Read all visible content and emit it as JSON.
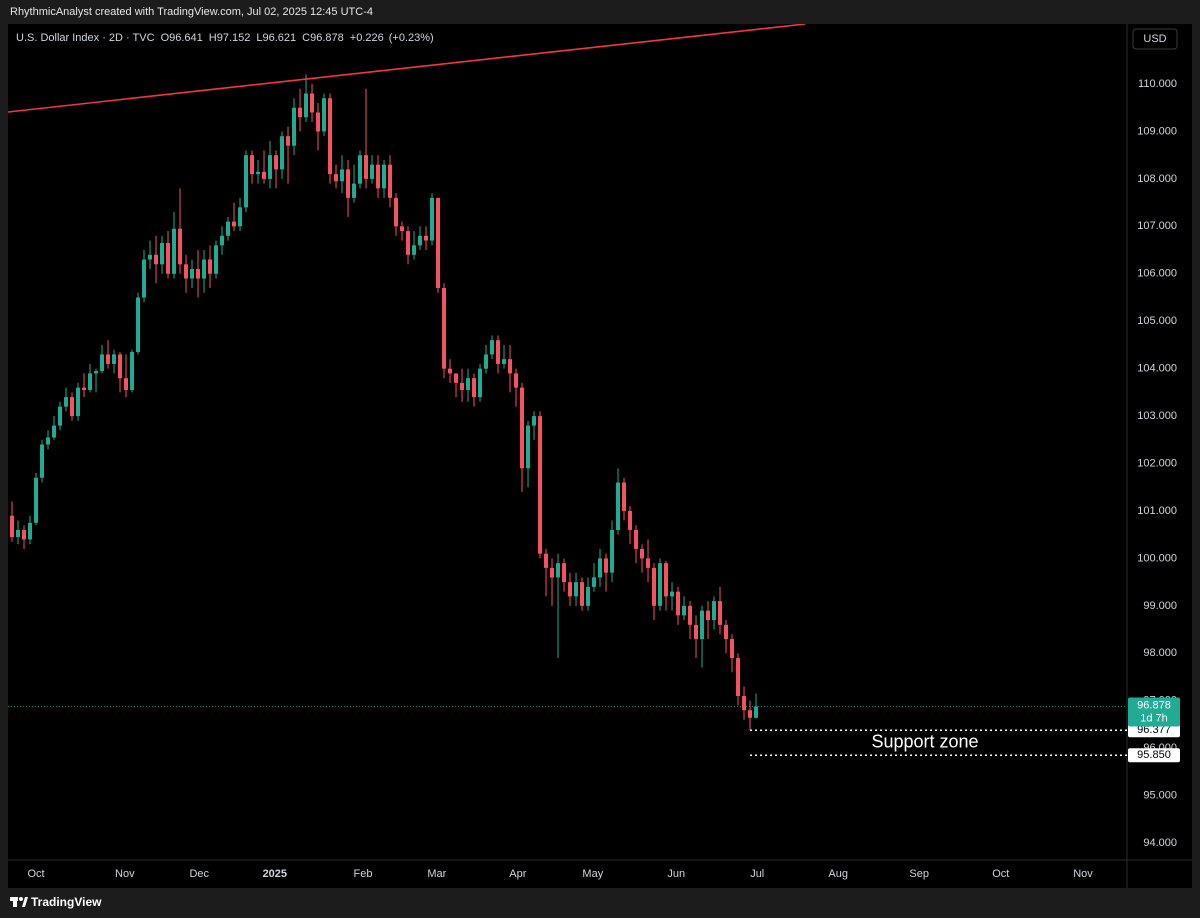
{
  "header": "RhythmicAnalyst created with TradingView.com, Jul 02, 2025 12:45 UTC-4",
  "brand": "TradingView",
  "chart_data": {
    "type": "candlestick",
    "title": "U.S. Dollar Index · 2D · TVC",
    "ohlc_labels": [
      "O",
      "H",
      "L",
      "C"
    ],
    "change": "+0.226",
    "change_pct": "(+0.23%)",
    "currency": "USD",
    "countdown": "1d 7h",
    "up_color": "#22ab94",
    "down_color": "#f7525f",
    "open": [
      100.9,
      100.45,
      100.6,
      100.4,
      100.75,
      101.7,
      102.4,
      102.55,
      102.8,
      103.2,
      103.4,
      103.0,
      103.6,
      103.55,
      103.9,
      103.95,
      104.3,
      104.1,
      104.3,
      103.8,
      103.55,
      104.35,
      105.5,
      106.3,
      106.4,
      106.2,
      106.65,
      106.0,
      106.95,
      106.2,
      105.9,
      106.1,
      105.9,
      106.3,
      106.0,
      106.6,
      106.8,
      107.1,
      107.0,
      107.4,
      108.5,
      108.1,
      108.15,
      108.0,
      108.5,
      108.2,
      108.9,
      108.7,
      109.5,
      109.3,
      109.8,
      109.4,
      109.0,
      109.7,
      108.1,
      107.95,
      108.2,
      107.6,
      107.9,
      108.5,
      108.0,
      108.3,
      107.8,
      108.3,
      107.6,
      107.0,
      106.9,
      106.4,
      106.6,
      106.8,
      106.7,
      107.6,
      105.7,
      104.0,
      103.9,
      103.7,
      103.55,
      103.8,
      103.4,
      104.0,
      104.3,
      104.6,
      104.1,
      104.2,
      103.9,
      103.6,
      101.9,
      102.8,
      103.0,
      100.1,
      99.8,
      99.6,
      99.9,
      99.5,
      99.2,
      99.5,
      99.0,
      99.4,
      99.6,
      100.0,
      99.7,
      100.6,
      101.6,
      101.0,
      100.6,
      100.2,
      100.0,
      99.8,
      99.0,
      99.9,
      99.2,
      99.3,
      98.8,
      99.0,
      98.6,
      98.3,
      98.9,
      98.7,
      99.1,
      98.6,
      98.3,
      97.9,
      97.1,
      96.8,
      96.641
    ],
    "high": [
      101.2,
      100.8,
      100.7,
      100.9,
      101.8,
      102.5,
      102.7,
      103.0,
      103.3,
      103.6,
      103.5,
      103.7,
      103.9,
      104.1,
      104.0,
      104.5,
      104.6,
      104.4,
      104.35,
      104.3,
      104.4,
      105.6,
      106.5,
      106.7,
      106.8,
      106.8,
      106.9,
      107.3,
      107.8,
      106.4,
      106.3,
      106.5,
      106.5,
      106.6,
      106.7,
      107.0,
      107.2,
      107.5,
      107.6,
      108.6,
      108.6,
      108.4,
      108.6,
      108.8,
      108.6,
      109.0,
      109.1,
      109.7,
      109.9,
      110.2,
      110.0,
      109.6,
      109.8,
      109.8,
      108.3,
      108.5,
      108.4,
      108.3,
      108.6,
      109.9,
      108.5,
      108.5,
      108.4,
      108.5,
      107.7,
      107.1,
      107.0,
      106.9,
      107.0,
      107.0,
      107.7,
      107.6,
      105.8,
      104.2,
      103.9,
      104.0,
      104.0,
      103.9,
      104.1,
      104.5,
      104.7,
      104.7,
      104.5,
      104.5,
      104.0,
      103.7,
      102.9,
      103.1,
      103.1,
      100.2,
      100.0,
      100.1,
      100.0,
      99.7,
      99.7,
      99.6,
      99.6,
      99.9,
      100.2,
      100.1,
      100.8,
      101.9,
      101.7,
      101.1,
      100.7,
      100.3,
      100.4,
      99.9,
      100.0,
      99.95,
      99.5,
      99.4,
      99.2,
      99.1,
      98.8,
      99.0,
      99.1,
      99.2,
      99.4,
      98.7,
      98.4,
      98.0,
      97.3,
      97.0,
      97.152
    ],
    "low": [
      100.35,
      100.3,
      100.2,
      100.3,
      100.7,
      101.6,
      102.3,
      102.5,
      102.7,
      103.1,
      102.9,
      102.9,
      103.4,
      103.5,
      103.5,
      103.9,
      104.0,
      103.9,
      103.5,
      103.4,
      103.5,
      104.3,
      105.4,
      106.1,
      105.8,
      106.0,
      105.9,
      105.9,
      106.0,
      105.6,
      105.7,
      105.5,
      105.6,
      105.7,
      105.9,
      106.4,
      106.7,
      106.9,
      106.9,
      107.3,
      107.9,
      107.9,
      107.9,
      107.8,
      107.8,
      108.0,
      107.9,
      108.5,
      109.0,
      109.2,
      109.2,
      108.6,
      108.9,
      107.9,
      107.8,
      107.7,
      107.2,
      107.5,
      107.8,
      107.8,
      107.9,
      107.6,
      107.6,
      107.4,
      106.8,
      106.7,
      106.2,
      106.3,
      106.5,
      106.5,
      106.6,
      105.6,
      103.8,
      103.7,
      103.4,
      103.3,
      103.3,
      103.2,
      103.3,
      103.9,
      104.2,
      103.9,
      104.0,
      103.5,
      103.2,
      101.4,
      101.5,
      102.5,
      100.0,
      99.2,
      99.0,
      97.9,
      99.3,
      99.0,
      99.0,
      98.9,
      98.9,
      99.3,
      99.4,
      99.3,
      99.5,
      100.5,
      100.8,
      100.3,
      99.9,
      99.7,
      99.5,
      98.7,
      98.9,
      98.9,
      98.9,
      98.6,
      98.7,
      98.3,
      97.9,
      97.7,
      98.3,
      98.5,
      98.4,
      98.0,
      97.6,
      96.9,
      96.6,
      96.38,
      96.621
    ],
    "close": [
      100.45,
      100.6,
      100.4,
      100.75,
      101.7,
      102.4,
      102.55,
      102.8,
      103.2,
      103.4,
      103.0,
      103.6,
      103.55,
      103.9,
      103.95,
      104.3,
      104.1,
      104.3,
      103.8,
      103.55,
      104.35,
      105.5,
      106.3,
      106.4,
      106.2,
      106.65,
      106.0,
      106.95,
      106.2,
      105.9,
      106.1,
      105.9,
      106.3,
      106.0,
      106.6,
      106.8,
      107.1,
      107.0,
      107.4,
      108.5,
      108.1,
      108.15,
      108.0,
      108.5,
      108.2,
      108.9,
      108.7,
      109.5,
      109.3,
      109.8,
      109.4,
      109.0,
      109.7,
      108.1,
      107.95,
      108.2,
      107.6,
      107.9,
      108.5,
      108.0,
      108.3,
      107.8,
      108.3,
      107.6,
      107.0,
      106.9,
      106.4,
      106.6,
      106.8,
      106.7,
      107.6,
      105.7,
      104.0,
      103.9,
      103.7,
      103.55,
      103.8,
      103.4,
      104.0,
      104.3,
      104.6,
      104.1,
      104.2,
      103.9,
      103.6,
      101.9,
      102.8,
      103.0,
      100.1,
      99.8,
      99.6,
      99.9,
      99.5,
      99.2,
      99.5,
      99.0,
      99.4,
      99.6,
      100.0,
      99.7,
      100.6,
      101.6,
      101.0,
      100.6,
      100.2,
      100.0,
      99.8,
      99.0,
      99.9,
      99.2,
      99.3,
      98.8,
      99.0,
      98.6,
      98.3,
      98.9,
      98.7,
      99.1,
      98.6,
      98.3,
      97.9,
      97.1,
      96.8,
      96.64,
      96.878
    ],
    "xlim": [
      -0.67,
      185.83
    ],
    "xticks": [
      {
        "value": 4,
        "label": "Oct"
      },
      {
        "value": 18.8,
        "label": "Nov"
      },
      {
        "value": 31.2,
        "label": "Dec"
      },
      {
        "value": 43.8,
        "label": "2025"
      },
      {
        "value": 58.5,
        "label": "Feb"
      },
      {
        "value": 70.8,
        "label": "Mar"
      },
      {
        "value": 84.3,
        "label": "Apr"
      },
      {
        "value": 96.8,
        "label": "May"
      },
      {
        "value": 110.7,
        "label": "Jun"
      },
      {
        "value": 124.2,
        "label": "Jul"
      },
      {
        "value": 137.7,
        "label": "Aug"
      },
      {
        "value": 151.2,
        "label": "Sep"
      },
      {
        "value": 164.8,
        "label": "Oct"
      },
      {
        "value": 178.5,
        "label": "Nov"
      }
    ],
    "ylim": [
      93.643,
      111.265
    ],
    "yticks": [
      {
        "value": 94,
        "label": "94.000"
      },
      {
        "value": 95,
        "label": "95.000"
      },
      {
        "value": 96,
        "label": "96.000"
      },
      {
        "value": 97,
        "label": "97.000"
      },
      {
        "value": 98,
        "label": "98.000"
      },
      {
        "value": 99,
        "label": "99.000"
      },
      {
        "value": 100,
        "label": "100.000"
      },
      {
        "value": 101,
        "label": "101.000"
      },
      {
        "value": 102,
        "label": "102.000"
      },
      {
        "value": 103,
        "label": "103.000"
      },
      {
        "value": 104,
        "label": "104.000"
      },
      {
        "value": 105,
        "label": "105.000"
      },
      {
        "value": 106,
        "label": "106.000"
      },
      {
        "value": 107,
        "label": "107.000"
      },
      {
        "value": 108,
        "label": "108.000"
      },
      {
        "value": 109,
        "label": "109.000"
      },
      {
        "value": 110,
        "label": "110.000"
      }
    ],
    "trendline": {
      "color": "#f23645",
      "x": [
        -0.67,
        132.2
      ],
      "y": [
        109.41,
        111.265
      ]
    },
    "support_zone": {
      "label": "Support zone",
      "start": 123,
      "levels": [
        96.377,
        {
          "value": 95.85,
          "label": "95.850"
        }
      ]
    }
  }
}
